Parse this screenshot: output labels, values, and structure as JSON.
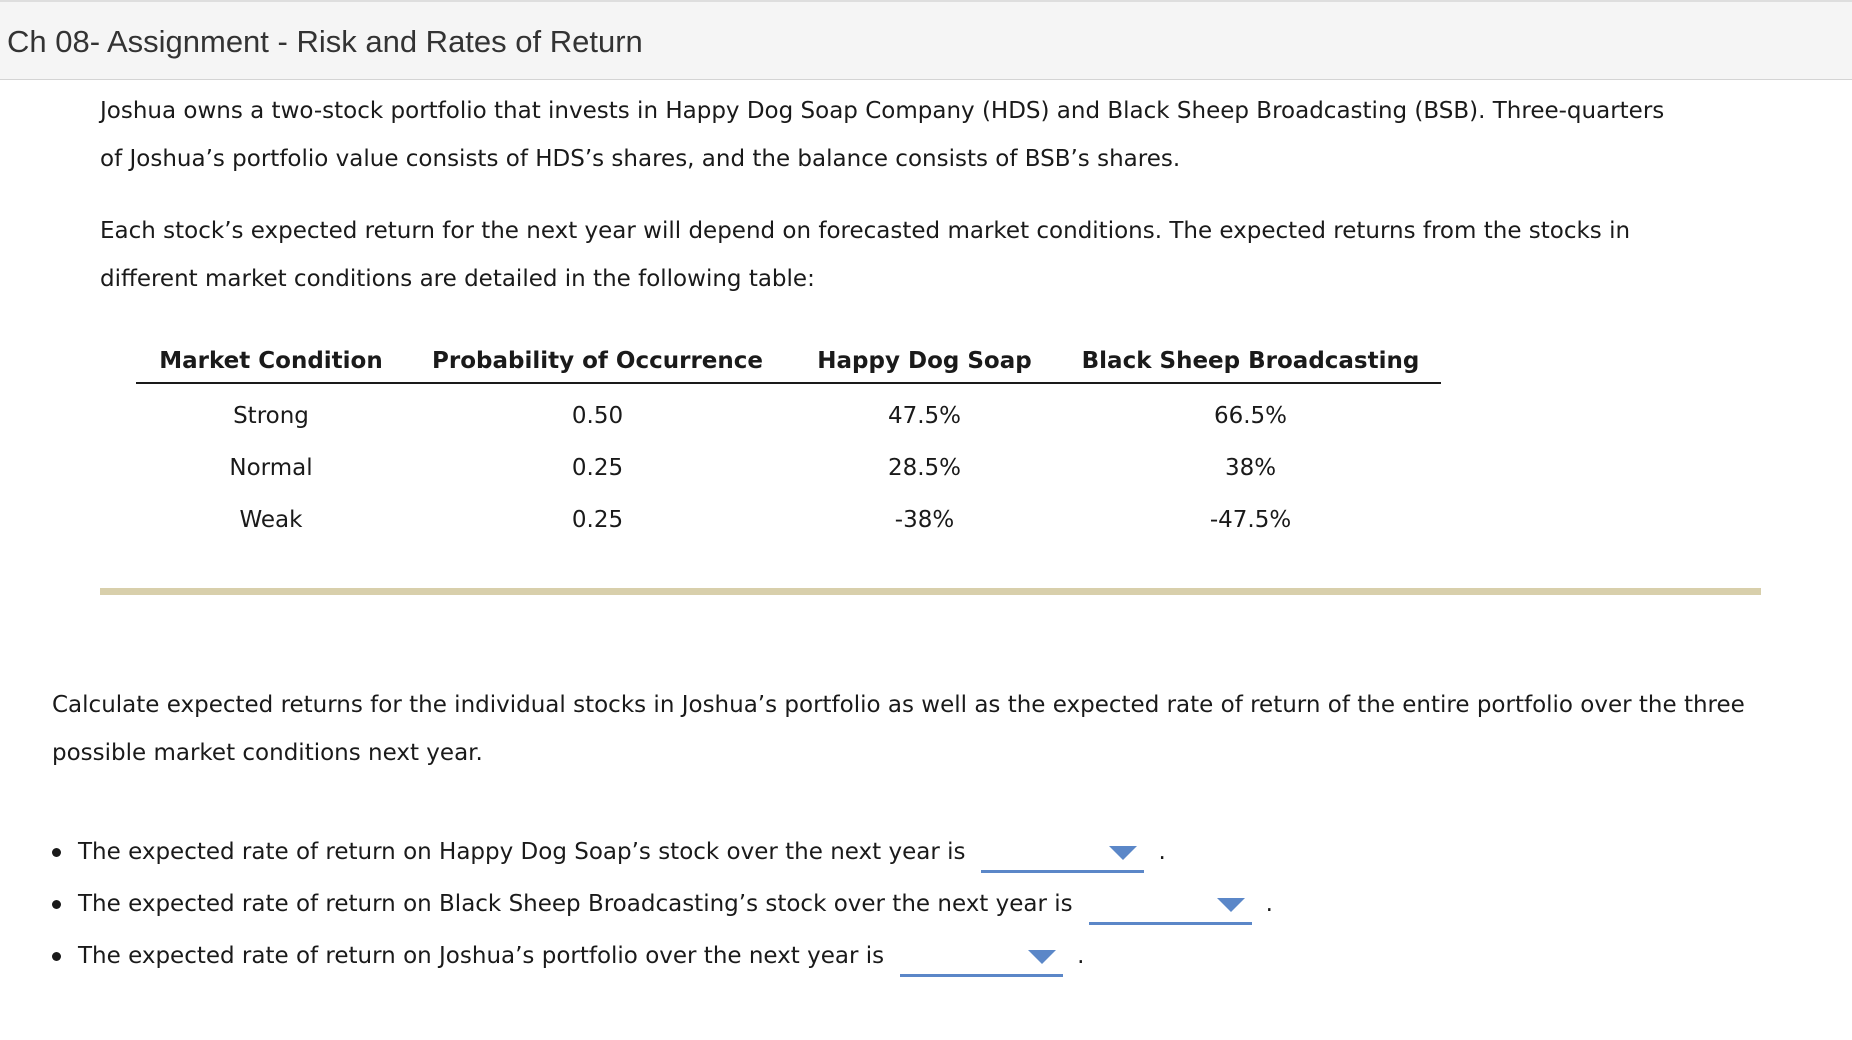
{
  "header": {
    "title": "Ch 08- Assignment - Risk and Rates of Return"
  },
  "intro": {
    "para1_line1": "Joshua owns a two-stock portfolio that invests in Happy Dog Soap Company (HDS) and Black Sheep Broadcasting (BSB). Three-quarters",
    "para1_line2": "of Joshua’s portfolio value consists of HDS’s shares, and the balance consists of BSB’s shares.",
    "para2_line1": "Each stock’s expected return for the next year will depend on forecasted market conditions. The expected returns from the stocks in",
    "para2_line2": "different market conditions are detailed in the following table:"
  },
  "table": {
    "headers": [
      "Market Condition",
      "Probability of Occurrence",
      "Happy Dog Soap",
      "Black Sheep Broadcasting"
    ],
    "rows": [
      [
        "Strong",
        "0.50",
        "47.5%",
        "66.5%"
      ],
      [
        "Normal",
        "0.25",
        "28.5%",
        "38%"
      ],
      [
        "Weak",
        "0.25",
        "-38%",
        "-47.5%"
      ]
    ]
  },
  "task": {
    "line1": "Calculate expected returns for the individual stocks in Joshua’s portfolio as well as the expected rate of return of the entire portfolio over the three",
    "line2": "possible market conditions next year."
  },
  "questions": [
    {
      "text": "The expected rate of return on Happy Dog Soap’s stock over the next year is",
      "selected": "",
      "suffix": "."
    },
    {
      "text": "The expected rate of return on Black Sheep Broadcasting’s stock over the next year is",
      "selected": "",
      "suffix": "."
    },
    {
      "text": "The expected rate of return on Joshua’s portfolio over the next year is",
      "selected": "",
      "suffix": "."
    }
  ],
  "colors": {
    "dropdown_accent": "#5b87c8",
    "divider": "#d8cfab",
    "header_bg": "#f5f5f5"
  },
  "icons": {
    "dropdown": "chevron-down-icon",
    "bullet": "bullet-icon"
  }
}
